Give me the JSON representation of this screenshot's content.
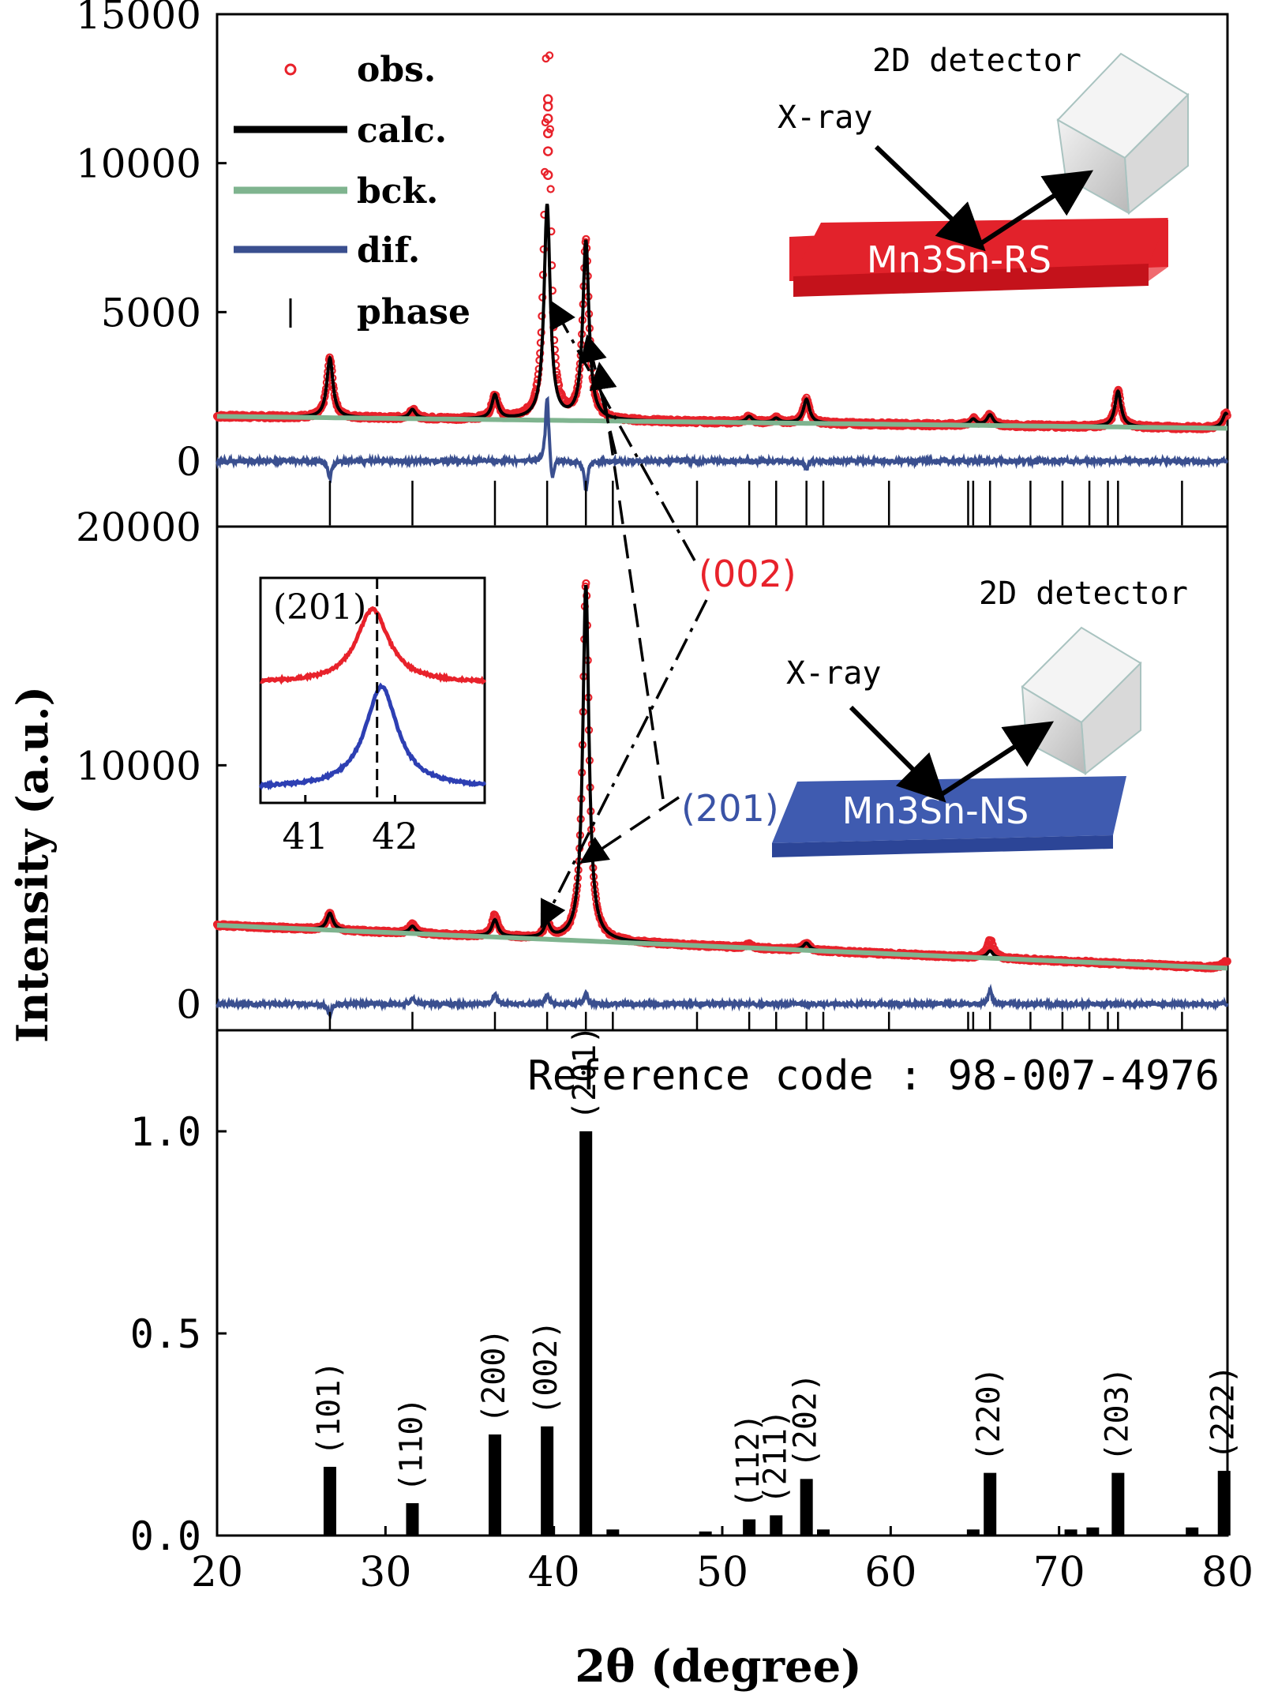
{
  "figure": {
    "ylabel": "Intensity (a.u.)",
    "xlabel": "2θ (degree)",
    "colors": {
      "obs": "#e8222b",
      "calc": "#000000",
      "bck": "#7fb48f",
      "dif": "#3a4f8f",
      "rs_slab": "#e2222b",
      "ns_slab": "#3f5bb0",
      "label_002": "#e8222b",
      "label_201": "#3a53a6"
    }
  },
  "legend": {
    "entries": [
      {
        "key": "obs",
        "label": "obs."
      },
      {
        "key": "calc",
        "label": "calc."
      },
      {
        "key": "bck",
        "label": "bck."
      },
      {
        "key": "dif",
        "label": "dif."
      },
      {
        "key": "phase",
        "label": "phase"
      }
    ]
  },
  "schematic_rs": {
    "detector": "2D detector",
    "xray": "X-ray",
    "sample": "Mn3Sn-RS"
  },
  "schematic_ns": {
    "detector": "2D detector",
    "xray": "X-ray",
    "sample": "Mn3Sn-NS"
  },
  "annotations": {
    "label_002": "(002)",
    "label_201": "(201)"
  },
  "reference": {
    "code": "Reference code : 98-007-4976"
  },
  "chart_data": [
    {
      "type": "line",
      "panel": "Mn3Sn-RS",
      "xlim": [
        20,
        80
      ],
      "ylim": [
        -2200,
        15000
      ],
      "yticks": [
        0,
        5000,
        10000,
        15000
      ],
      "phase_marks": [
        26.7,
        31.6,
        36.5,
        39.6,
        41.9,
        43.5,
        48.5,
        51.6,
        53.2,
        55.0,
        56.0,
        59.9,
        64.6,
        64.9,
        65.9,
        68.3,
        70.2,
        71.8,
        72.9,
        73.5,
        77.3,
        80.0
      ],
      "series": [
        {
          "name": "obs.",
          "marker": "circle",
          "baseline": 1300,
          "peaks": [
            [
              26.7,
              2000
            ],
            [
              31.6,
              300
            ],
            [
              36.5,
              800
            ],
            [
              39.6,
              7200
            ],
            [
              39.65,
              11000
            ],
            [
              41.9,
              6000
            ],
            [
              51.6,
              200
            ],
            [
              53.2,
              150
            ],
            [
              55.0,
              800
            ],
            [
              64.9,
              200
            ],
            [
              65.9,
              350
            ],
            [
              73.5,
              1200
            ],
            [
              79.9,
              500
            ]
          ]
        },
        {
          "name": "calc.",
          "baseline": 1300,
          "peaks": [
            [
              26.7,
              2000
            ],
            [
              31.6,
              300
            ],
            [
              36.5,
              800
            ],
            [
              39.6,
              7200
            ],
            [
              41.9,
              6000
            ],
            [
              51.6,
              200
            ],
            [
              53.2,
              150
            ],
            [
              55.0,
              800
            ],
            [
              64.9,
              200
            ],
            [
              65.9,
              350
            ],
            [
              73.5,
              1200
            ],
            [
              79.9,
              500
            ]
          ]
        },
        {
          "name": "bck.",
          "baseline_start": 1500,
          "baseline_end": 1100
        },
        {
          "name": "dif.",
          "offset": 0,
          "features": [
            [
              26.7,
              -600
            ],
            [
              39.6,
              2200
            ],
            [
              39.9,
              -800
            ],
            [
              41.9,
              -1000
            ],
            [
              55.0,
              -300
            ]
          ]
        }
      ]
    },
    {
      "type": "line",
      "panel": "Mn3Sn-NS",
      "xlim": [
        20,
        80
      ],
      "ylim": [
        -1100,
        20000
      ],
      "yticks": [
        0,
        10000,
        20000
      ],
      "phase_marks": [
        26.7,
        31.6,
        36.5,
        39.6,
        41.9,
        43.5,
        48.5,
        51.6,
        53.2,
        55.0,
        56.0,
        59.9,
        64.6,
        64.9,
        65.9,
        68.3,
        70.2,
        71.8,
        72.9,
        73.5,
        77.3,
        80.0
      ],
      "series": [
        {
          "name": "obs.",
          "marker": "circle",
          "baseline": 3300,
          "peaks": [
            [
              26.7,
              700
            ],
            [
              31.6,
              400
            ],
            [
              36.5,
              900
            ],
            [
              39.6,
              600
            ],
            [
              41.9,
              15000
            ],
            [
              51.6,
              150
            ],
            [
              55.0,
              300
            ],
            [
              65.9,
              800
            ],
            [
              79.9,
              300
            ]
          ]
        },
        {
          "name": "calc.",
          "baseline": 3300,
          "peaks": [
            [
              26.7,
              700
            ],
            [
              31.6,
              300
            ],
            [
              36.5,
              700
            ],
            [
              39.6,
              600
            ],
            [
              41.9,
              14900
            ],
            [
              55.0,
              300
            ],
            [
              65.9,
              300
            ]
          ]
        },
        {
          "name": "bck.",
          "baseline_start": 3300,
          "baseline_end": 1500
        },
        {
          "name": "dif.",
          "offset": 0,
          "features": [
            [
              26.7,
              -450
            ],
            [
              31.6,
              300
            ],
            [
              36.5,
              450
            ],
            [
              39.6,
              400
            ],
            [
              41.9,
              450
            ],
            [
              65.9,
              600
            ]
          ]
        }
      ]
    },
    {
      "type": "line",
      "panel": "inset",
      "xlim": [
        40.5,
        43.0
      ],
      "xticks": [
        41,
        42
      ],
      "annotation": "(201)",
      "dashed_line": 41.8,
      "series": [
        {
          "name": "Mn3Sn-RS",
          "peak_center": 41.75
        },
        {
          "name": "Mn3Sn-NS",
          "peak_center": 41.85
        }
      ]
    },
    {
      "type": "bar",
      "panel": "reference",
      "xlim": [
        20,
        80
      ],
      "ylim": [
        0,
        1.25
      ],
      "xticks": [
        20,
        30,
        40,
        50,
        60,
        70,
        80
      ],
      "yticks": [
        "0.0",
        "0.5",
        "1.0"
      ],
      "bars": [
        {
          "x": 26.7,
          "value": 0.17,
          "label": "(101)"
        },
        {
          "x": 31.6,
          "value": 0.08,
          "label": "(110)"
        },
        {
          "x": 36.5,
          "value": 0.25,
          "label": "(200)"
        },
        {
          "x": 39.6,
          "value": 0.27,
          "label": "(002)"
        },
        {
          "x": 41.9,
          "value": 1.0,
          "label": "(201)"
        },
        {
          "x": 43.5,
          "value": 0.015,
          "label": ""
        },
        {
          "x": 49.0,
          "value": 0.01,
          "label": ""
        },
        {
          "x": 51.6,
          "value": 0.04,
          "label": "(112)"
        },
        {
          "x": 53.2,
          "value": 0.05,
          "label": "(211)"
        },
        {
          "x": 55.0,
          "value": 0.14,
          "label": "(202)"
        },
        {
          "x": 56.0,
          "value": 0.015,
          "label": ""
        },
        {
          "x": 64.9,
          "value": 0.015,
          "label": ""
        },
        {
          "x": 65.9,
          "value": 0.155,
          "label": "(220)"
        },
        {
          "x": 70.7,
          "value": 0.015,
          "label": ""
        },
        {
          "x": 72.0,
          "value": 0.02,
          "label": ""
        },
        {
          "x": 73.5,
          "value": 0.155,
          "label": "(203)"
        },
        {
          "x": 77.9,
          "value": 0.02,
          "label": ""
        },
        {
          "x": 79.8,
          "value": 0.16,
          "label": "(222)"
        }
      ]
    }
  ]
}
